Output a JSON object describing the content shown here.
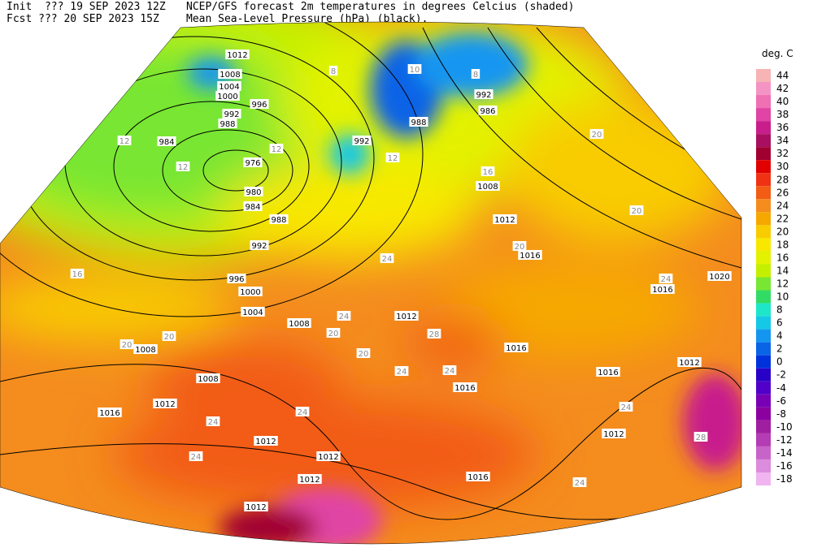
{
  "header": {
    "init": "Init  ??? 19 SEP 2023 12Z",
    "title": "NCEP/GFS forecast 2m temperatures in degrees Celcius (shaded)",
    "fcst": "Fcst ??? 20 SEP 2023 15Z",
    "subtitle": "Mean Sea-Level Pressure (hPa) (black)."
  },
  "legend": {
    "title": "deg. C",
    "levels": [
      44,
      42,
      40,
      38,
      36,
      34,
      32,
      30,
      28,
      26,
      24,
      22,
      20,
      18,
      16,
      14,
      12,
      10,
      8,
      6,
      4,
      2,
      0,
      -2,
      -4,
      -6,
      -8,
      -10,
      -12,
      -14,
      -16,
      -18
    ],
    "colors": [
      "#f6b4b4",
      "#f494c4",
      "#f070b4",
      "#e044a4",
      "#c81e8c",
      "#a80f60",
      "#a00030",
      "#e00000",
      "#f03214",
      "#f25c14",
      "#f48c1e",
      "#f6a800",
      "#f8cc00",
      "#f8e800",
      "#e2f200",
      "#c4f000",
      "#78e632",
      "#32dc64",
      "#1ee6c8",
      "#14c8e6",
      "#1496f0",
      "#0a64e6",
      "#0032dc",
      "#2800c8",
      "#5000c8",
      "#7800b4",
      "#8c00a0",
      "#a01ea0",
      "#b43cb4",
      "#c864c8",
      "#dc8cdc",
      "#f0b4f0"
    ]
  },
  "map": {
    "isobar_labels": [
      "1012",
      "1008",
      "1004",
      "1000",
      "996",
      "992",
      "988",
      "984",
      "976",
      "980",
      "984",
      "988",
      "992",
      "996",
      "1000",
      "1004",
      "1008",
      "1008",
      "1008",
      "1012",
      "1016",
      "1012",
      "1012",
      "1012",
      "1012",
      "1016",
      "1012",
      "1016",
      "1016",
      "1016",
      "1012",
      "1016",
      "1012",
      "1008",
      "988",
      "992",
      "992",
      "986",
      "1012",
      "1016",
      "1020"
    ],
    "temperature_labels": [
      "8",
      "8",
      "10",
      "12",
      "12",
      "12",
      "12",
      "16",
      "16",
      "20",
      "20",
      "20",
      "24",
      "24",
      "20",
      "20",
      "24",
      "24",
      "28",
      "24",
      "24",
      "24",
      "24",
      "20",
      "20",
      "24",
      "28",
      "24"
    ]
  }
}
